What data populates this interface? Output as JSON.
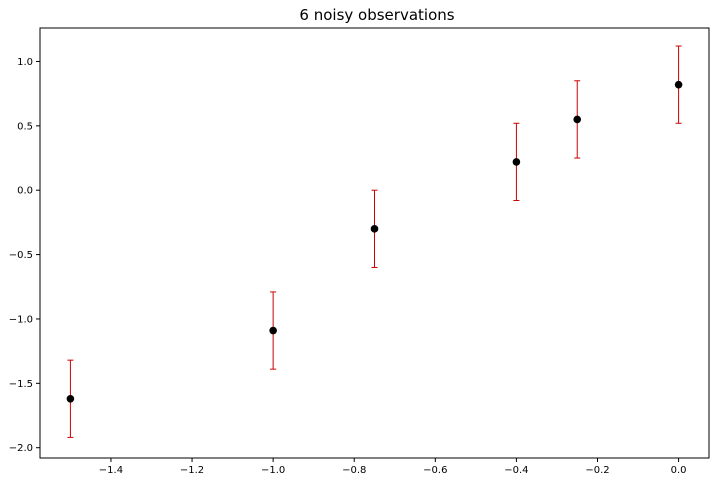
{
  "chart_data": {
    "type": "scatter",
    "title": "6 noisy observations",
    "xlabel": "",
    "ylabel": "",
    "xlim": [
      -1.575,
      0.075
    ],
    "ylim": [
      -2.08,
      1.26
    ],
    "xticks": [
      -1.4,
      -1.2,
      -1.0,
      -0.8,
      -0.6,
      -0.4,
      -0.2,
      0.0
    ],
    "xtick_labels": [
      "−1.4",
      "−1.2",
      "−1.0",
      "−0.8",
      "−0.6",
      "−0.4",
      "−0.2",
      "0.0"
    ],
    "yticks": [
      -2.0,
      -1.5,
      -1.0,
      -0.5,
      0.0,
      0.5,
      1.0
    ],
    "ytick_labels": [
      "−2.0",
      "−1.5",
      "−1.0",
      "−0.5",
      "0.0",
      "0.5",
      "1.0"
    ],
    "grid": false,
    "marker_color": "#000000",
    "errorbar_color": "#cc0000",
    "series": [
      {
        "x": [
          -1.5,
          -1.0,
          -0.75,
          -0.4,
          -0.25,
          0.0
        ],
        "y": [
          -1.62,
          -1.09,
          -0.3,
          0.22,
          0.55,
          0.82
        ],
        "yerr": [
          0.3,
          0.3,
          0.3,
          0.3,
          0.3,
          0.3
        ]
      }
    ]
  }
}
